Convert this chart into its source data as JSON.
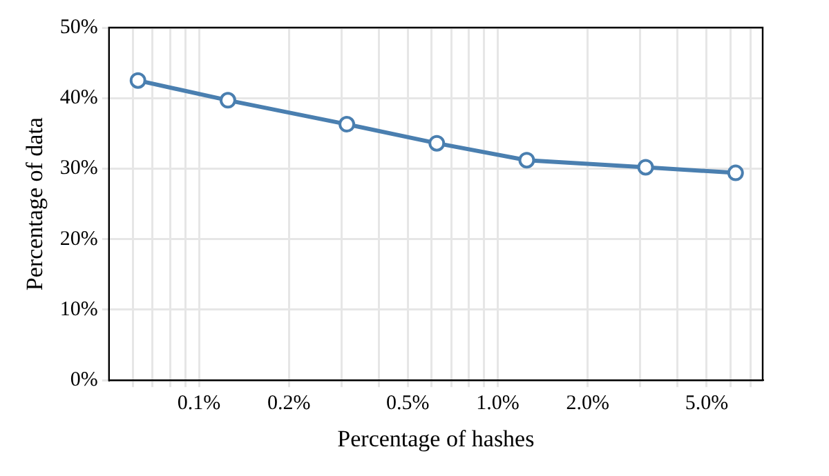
{
  "chart_data": {
    "type": "line",
    "xlabel": "Percentage of hashes",
    "ylabel": "Percentage of data",
    "x": [
      0.0625,
      0.125,
      0.3125,
      0.625,
      1.25,
      3.125,
      6.25
    ],
    "series": [
      {
        "color": "#4a7fb0",
        "values": [
          42.5,
          39.7,
          36.3,
          33.6,
          31.2,
          30.2,
          29.4
        ]
      }
    ],
    "log": "x",
    "xlim": [
      0.05,
      7.7
    ],
    "xticks": [
      {
        "value": 0.06,
        "label": null
      },
      {
        "value": 0.07,
        "label": null
      },
      {
        "value": 0.08,
        "label": null
      },
      {
        "value": 0.09,
        "label": null
      },
      {
        "value": 0.1,
        "label": "0.1%"
      },
      {
        "value": 0.2,
        "label": "0.2%"
      },
      {
        "value": 0.3,
        "label": null
      },
      {
        "value": 0.4,
        "label": null
      },
      {
        "value": 0.5,
        "label": "0.5%"
      },
      {
        "value": 0.6,
        "label": null
      },
      {
        "value": 0.7,
        "label": null
      },
      {
        "value": 0.8,
        "label": null
      },
      {
        "value": 0.9,
        "label": null
      },
      {
        "value": 1,
        "label": "1.0%"
      },
      {
        "value": 2,
        "label": "2.0%"
      },
      {
        "value": 3,
        "label": null
      },
      {
        "value": 4,
        "label": null
      },
      {
        "value": 5,
        "label": "5.0%"
      },
      {
        "value": 6,
        "label": null
      },
      {
        "value": 7,
        "label": null
      }
    ],
    "ylim": [
      0,
      50
    ],
    "yticks": [
      {
        "value": 0,
        "label": "0%"
      },
      {
        "value": 10,
        "label": "10%"
      },
      {
        "value": 20,
        "label": "20%"
      },
      {
        "value": 30,
        "label": "30%"
      },
      {
        "value": 40,
        "label": "40%"
      },
      {
        "value": 50,
        "label": "50%"
      }
    ],
    "grid": true,
    "marker": "circle",
    "line_style": "solid",
    "legend": false
  }
}
